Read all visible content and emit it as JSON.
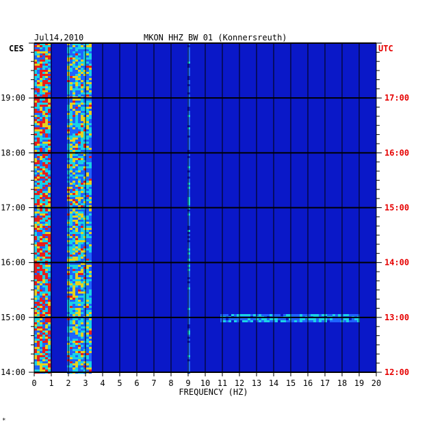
{
  "header": {
    "date": "Jul14,2010",
    "station": "MKON HHZ BW 01 (Konnersreuth)"
  },
  "corner_mark": "*",
  "chart_data": {
    "type": "heatmap",
    "xlabel": "FREQUENCY (HZ)",
    "x_ticks": [
      0,
      1,
      2,
      3,
      4,
      5,
      6,
      7,
      8,
      9,
      10,
      11,
      12,
      13,
      14,
      15,
      16,
      17,
      18,
      19,
      20
    ],
    "xlim": [
      0,
      20
    ],
    "left_axis": {
      "label": "CES",
      "ticks": [
        "14:00",
        "15:00",
        "16:00",
        "17:00",
        "18:00",
        "19:00"
      ],
      "tick_hours": [
        14,
        15,
        16,
        17,
        18,
        19
      ],
      "range_hours": [
        14,
        20.0
      ]
    },
    "right_axis": {
      "label": "UTC",
      "ticks": [
        "12:00",
        "13:00",
        "14:00",
        "15:00",
        "16:00",
        "17:00"
      ],
      "tick_hours": [
        12,
        13,
        14,
        15,
        16,
        17
      ],
      "range_hours": [
        12,
        18.0
      ]
    },
    "colors": {
      "background": "#0a18c8",
      "low": "#0a18c8",
      "mid": "#1e64ff",
      "high": "#19d2e6",
      "peak": "#e6d21e",
      "max": "#e61e1e",
      "grid": "#000000",
      "right_axis_text": "#e60000"
    },
    "features": [
      {
        "f_min": 0.0,
        "f_max": 0.8,
        "intensity": 0.95,
        "note": "strong low-frequency energy"
      },
      {
        "f_min": 1.8,
        "f_max": 3.2,
        "intensity": 0.75
      },
      {
        "f_min": 8.9,
        "f_max": 9.0,
        "intensity": 0.45
      },
      {
        "f_min": 10.8,
        "f_max": 19.0,
        "intensity": 0.6,
        "hour": 15.0
      }
    ]
  }
}
